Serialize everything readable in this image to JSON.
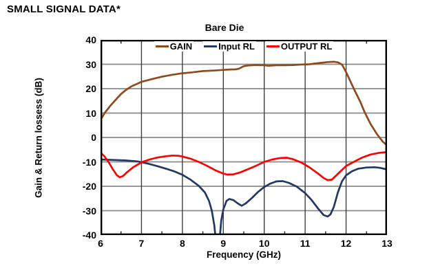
{
  "page": {
    "heading": "SMALL SIGNAL DATA*"
  },
  "chart_data": {
    "type": "line",
    "title": "Bare Die",
    "xlabel": "Frequency (GHz)",
    "ylabel": "Gain & Return lossess (dB)",
    "xlim": [
      6,
      13
    ],
    "ylim": [
      -40,
      40
    ],
    "x_ticks": [
      6,
      7,
      8,
      9,
      10,
      11,
      12,
      13
    ],
    "y_ticks": [
      40,
      30,
      20,
      10,
      0,
      -10,
      -20,
      -30,
      -40
    ],
    "x_minor_tick_step": 0.5,
    "grid": true,
    "legend_position": "inside-top-center",
    "colors": {
      "axis": "#000000",
      "h_grid": "#8a8a8a",
      "v_grid": "#3d3d3d",
      "background": "#ffffff"
    },
    "series": [
      {
        "name": "GAIN",
        "color": "#8E4A1D",
        "points": [
          [
            6,
            7.2
          ],
          [
            6.1,
            10
          ],
          [
            6.25,
            13.2
          ],
          [
            6.4,
            16
          ],
          [
            6.5,
            17.8
          ],
          [
            6.6,
            19.2
          ],
          [
            6.75,
            20.9
          ],
          [
            7,
            22.8
          ],
          [
            7.25,
            23.9
          ],
          [
            7.5,
            24.9
          ],
          [
            7.75,
            25.7
          ],
          [
            8,
            26.3
          ],
          [
            8.25,
            26.7
          ],
          [
            8.5,
            27.2
          ],
          [
            8.75,
            27.4
          ],
          [
            9,
            27.7
          ],
          [
            9.2,
            27.9
          ],
          [
            9.3,
            27.9
          ],
          [
            9.38,
            28.2
          ],
          [
            9.45,
            28.8
          ],
          [
            9.5,
            29.2
          ],
          [
            9.6,
            29.5
          ],
          [
            9.8,
            29.7
          ],
          [
            10,
            29.6
          ],
          [
            10.1,
            29.4
          ],
          [
            10.3,
            29.6
          ],
          [
            10.5,
            29.6
          ],
          [
            10.7,
            29.7
          ],
          [
            10.9,
            29.9
          ],
          [
            11.1,
            30.0
          ],
          [
            11.25,
            30.3
          ],
          [
            11.4,
            30.6
          ],
          [
            11.55,
            30.9
          ],
          [
            11.7,
            31.0
          ],
          [
            11.8,
            30.8
          ],
          [
            11.9,
            29.9
          ],
          [
            12,
            26.8
          ],
          [
            12.1,
            23.2
          ],
          [
            12.2,
            19.6
          ],
          [
            12.35,
            14.5
          ],
          [
            12.45,
            10.5
          ],
          [
            12.6,
            5.5
          ],
          [
            12.75,
            1.5
          ],
          [
            12.9,
            -1.8
          ],
          [
            13,
            -3.2
          ]
        ]
      },
      {
        "name": "Input RL",
        "color": "#1F3864",
        "points": [
          [
            6,
            -9
          ],
          [
            6.3,
            -9.2
          ],
          [
            6.6,
            -9.4
          ],
          [
            6.9,
            -9.8
          ],
          [
            7,
            -10.1
          ],
          [
            7.2,
            -10.9
          ],
          [
            7.4,
            -11.8
          ],
          [
            7.6,
            -12.8
          ],
          [
            7.8,
            -13.9
          ],
          [
            8,
            -15.3
          ],
          [
            8.2,
            -17.3
          ],
          [
            8.4,
            -19.8
          ],
          [
            8.55,
            -22.5
          ],
          [
            8.65,
            -26
          ],
          [
            8.72,
            -30
          ],
          [
            8.78,
            -36
          ],
          [
            8.83,
            -44
          ],
          [
            8.9,
            -44
          ],
          [
            8.95,
            -34
          ],
          [
            9,
            -29.5
          ],
          [
            9.08,
            -26
          ],
          [
            9.15,
            -25.2
          ],
          [
            9.25,
            -25.7
          ],
          [
            9.35,
            -27
          ],
          [
            9.45,
            -28
          ],
          [
            9.55,
            -27
          ],
          [
            9.7,
            -24.8
          ],
          [
            9.85,
            -22.3
          ],
          [
            10,
            -20.3
          ],
          [
            10.15,
            -18.9
          ],
          [
            10.3,
            -18
          ],
          [
            10.45,
            -17.9
          ],
          [
            10.6,
            -18.6
          ],
          [
            10.8,
            -20.2
          ],
          [
            11,
            -22.8
          ],
          [
            11.15,
            -25.5
          ],
          [
            11.3,
            -28.8
          ],
          [
            11.45,
            -31.8
          ],
          [
            11.55,
            -32.4
          ],
          [
            11.62,
            -31.5
          ],
          [
            11.7,
            -28.5
          ],
          [
            11.8,
            -22.5
          ],
          [
            11.9,
            -18
          ],
          [
            12,
            -15.5
          ],
          [
            12.15,
            -13.8
          ],
          [
            12.3,
            -12.8
          ],
          [
            12.5,
            -12.3
          ],
          [
            12.7,
            -12.2
          ],
          [
            12.85,
            -12.5
          ],
          [
            13,
            -13.1
          ]
        ]
      },
      {
        "name": "OUTPUT RL",
        "color": "#FF0000",
        "points": [
          [
            6,
            -6.2
          ],
          [
            6.1,
            -7.8
          ],
          [
            6.2,
            -10.2
          ],
          [
            6.3,
            -13
          ],
          [
            6.4,
            -15.5
          ],
          [
            6.47,
            -16.3
          ],
          [
            6.55,
            -15.8
          ],
          [
            6.65,
            -14.2
          ],
          [
            6.8,
            -12.2
          ],
          [
            7,
            -10.2
          ],
          [
            7.2,
            -9
          ],
          [
            7.4,
            -8.2
          ],
          [
            7.6,
            -7.7
          ],
          [
            7.75,
            -7.4
          ],
          [
            7.9,
            -7.5
          ],
          [
            8,
            -7.8
          ],
          [
            8.2,
            -8.7
          ],
          [
            8.4,
            -10
          ],
          [
            8.6,
            -11.6
          ],
          [
            8.8,
            -13.4
          ],
          [
            9,
            -14.8
          ],
          [
            9.1,
            -15.2
          ],
          [
            9.25,
            -15.1
          ],
          [
            9.4,
            -14.4
          ],
          [
            9.6,
            -13
          ],
          [
            9.8,
            -11.6
          ],
          [
            10,
            -10
          ],
          [
            10.2,
            -9
          ],
          [
            10.4,
            -8.4
          ],
          [
            10.55,
            -8.3
          ],
          [
            10.7,
            -8.9
          ],
          [
            10.9,
            -10.2
          ],
          [
            11.1,
            -12.2
          ],
          [
            11.3,
            -14.6
          ],
          [
            11.45,
            -16.6
          ],
          [
            11.55,
            -17.5
          ],
          [
            11.65,
            -17.3
          ],
          [
            11.8,
            -14.9
          ],
          [
            12,
            -11.7
          ],
          [
            12.2,
            -9.9
          ],
          [
            12.4,
            -8.2
          ],
          [
            12.6,
            -7
          ],
          [
            12.8,
            -6.3
          ],
          [
            13,
            -6
          ]
        ]
      }
    ]
  }
}
